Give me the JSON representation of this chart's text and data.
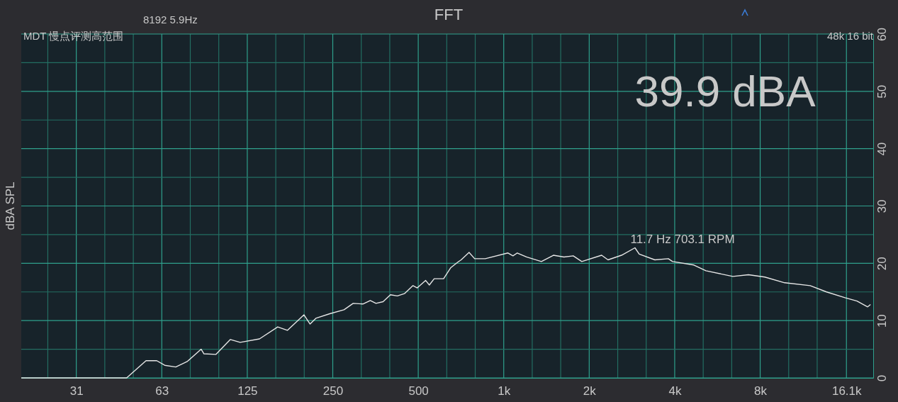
{
  "chart_data": {
    "type": "line",
    "title": "FFT",
    "ylabel": "dBA SPL",
    "annotations": [
      "8192  5.9Hz",
      "MDT 慢点评测高范围",
      "48k 16 bit",
      "39.9 dBA",
      "11.7 Hz 703.1 RPM"
    ],
    "log": "x",
    "grid": true,
    "marker": "none",
    "line_style": "solid",
    "xlim": [
      20,
      20000
    ],
    "xticks": [
      {
        "value": 24.8,
        "label": null
      },
      {
        "value": 31.25,
        "label": "31"
      },
      {
        "value": 39.37,
        "label": null
      },
      {
        "value": 49.61,
        "label": null
      },
      {
        "value": 62.5,
        "label": "63"
      },
      {
        "value": 78.75,
        "label": null
      },
      {
        "value": 99.21,
        "label": null
      },
      {
        "value": 125,
        "label": "125"
      },
      {
        "value": 157.5,
        "label": null
      },
      {
        "value": 198.4,
        "label": null
      },
      {
        "value": 250,
        "label": "250"
      },
      {
        "value": 315,
        "label": null
      },
      {
        "value": 396.9,
        "label": null
      },
      {
        "value": 500,
        "label": "500"
      },
      {
        "value": 630,
        "label": null
      },
      {
        "value": 793.7,
        "label": null
      },
      {
        "value": 1000,
        "label": "1k"
      },
      {
        "value": 1260,
        "label": null
      },
      {
        "value": 1587,
        "label": null
      },
      {
        "value": 2000,
        "label": "2k"
      },
      {
        "value": 2520,
        "label": null
      },
      {
        "value": 3175,
        "label": null
      },
      {
        "value": 4000,
        "label": "4k"
      },
      {
        "value": 5040,
        "label": null
      },
      {
        "value": 6350,
        "label": null
      },
      {
        "value": 8000,
        "label": "8k"
      },
      {
        "value": 10079,
        "label": null
      },
      {
        "value": 12699,
        "label": null
      },
      {
        "value": 16100,
        "label": "16.1k"
      }
    ],
    "ylim": [
      0,
      60
    ],
    "yticks": [
      0,
      {
        "value": 5,
        "label": null
      },
      10,
      {
        "value": 15,
        "label": null
      },
      20,
      {
        "value": 25,
        "label": null
      },
      30,
      {
        "value": 35,
        "label": null
      },
      40,
      {
        "value": 45,
        "label": null
      },
      50,
      {
        "value": 55,
        "label": null
      },
      60
    ],
    "series": [
      {
        "color": "#e6e6e6",
        "x": [
          20,
          47,
          55,
          60,
          64,
          70,
          77,
          86,
          88,
          97,
          109,
          118,
          138,
          160,
          173,
          198,
          208,
          218,
          244,
          274,
          295,
          320,
          339,
          355,
          376,
          399,
          422,
          447,
          479,
          496,
          531,
          547,
          569,
          614,
          650,
          689,
          708,
          755,
          790,
          861,
          1035,
          1078,
          1116,
          1202,
          1357,
          1496,
          1630,
          1757,
          1883,
          2212,
          2329,
          2599,
          2898,
          3000,
          3405,
          3798,
          3931,
          4672,
          5152,
          6409,
          7275,
          8305,
          9755,
          12000,
          13700,
          15910,
          17540,
          19120,
          19570
        ],
        "values": [
          0,
          0,
          3.0,
          3.0,
          2.2,
          1.9,
          2.9,
          5.0,
          4.2,
          4.1,
          6.7,
          6.2,
          6.8,
          8.9,
          8.3,
          11.0,
          9.4,
          10.4,
          11.2,
          11.9,
          13.0,
          12.9,
          13.5,
          13.0,
          13.3,
          14.5,
          14.3,
          14.7,
          16.1,
          15.7,
          17.0,
          16.2,
          17.3,
          17.3,
          19.2,
          20.2,
          20.6,
          21.9,
          20.8,
          20.8,
          21.8,
          21.3,
          21.8,
          21.1,
          20.3,
          21.4,
          21.1,
          21.3,
          20.3,
          21.4,
          20.6,
          21.4,
          22.7,
          21.6,
          20.6,
          20.8,
          20.3,
          19.7,
          18.7,
          17.7,
          18.0,
          17.6,
          16.6,
          16.1,
          15.0,
          14.0,
          13.4,
          12.4,
          12.8
        ]
      }
    ]
  }
}
